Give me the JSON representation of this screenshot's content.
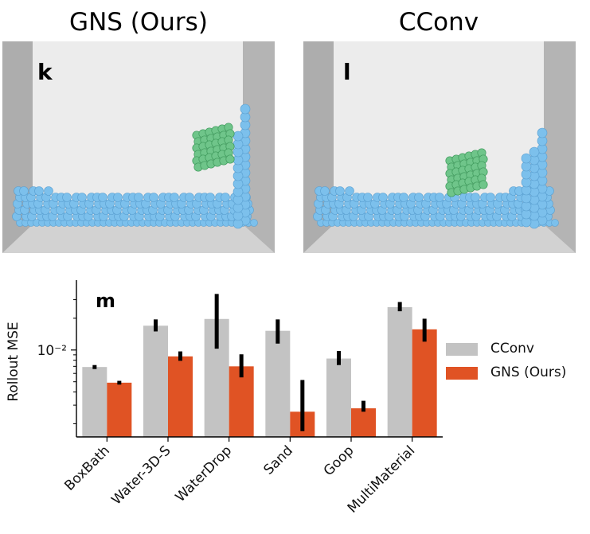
{
  "titles": {
    "left": "GNS (Ours)",
    "right": "CConv"
  },
  "panels": {
    "left_letter": "k",
    "right_letter": "l"
  },
  "chart_data": {
    "type": "bar",
    "panel_letter": "m",
    "categories": [
      "BoxBath",
      "Water-3D-S",
      "WaterDrop",
      "Sand",
      "Goop",
      "MultiMaterial"
    ],
    "ylabel": "Rollout MSE",
    "yscale": "log",
    "ylim": [
      0.0015,
      0.04
    ],
    "yticks": [
      {
        "value": 0.01,
        "label": "10⁻²"
      }
    ],
    "series": [
      {
        "name": "CConv",
        "color": "#c3c3c3",
        "values": [
          0.0069,
          0.017,
          0.0197,
          0.0152,
          0.0083,
          0.0255
        ],
        "err_low": [
          0.0066,
          0.015,
          0.0103,
          0.0115,
          0.0072,
          0.0233
        ],
        "err_high": [
          0.0072,
          0.0195,
          0.034,
          0.0195,
          0.0098,
          0.0285
        ]
      },
      {
        "name": "GNS (Ours)",
        "color": "#e05324",
        "values": [
          0.0049,
          0.0087,
          0.007,
          0.0026,
          0.0028,
          0.0157
        ],
        "err_low": [
          0.0047,
          0.0079,
          0.0055,
          0.0017,
          0.0026,
          0.012
        ],
        "err_high": [
          0.0051,
          0.0097,
          0.0091,
          0.0052,
          0.0033,
          0.0198
        ]
      }
    ],
    "legend_position": "right"
  }
}
